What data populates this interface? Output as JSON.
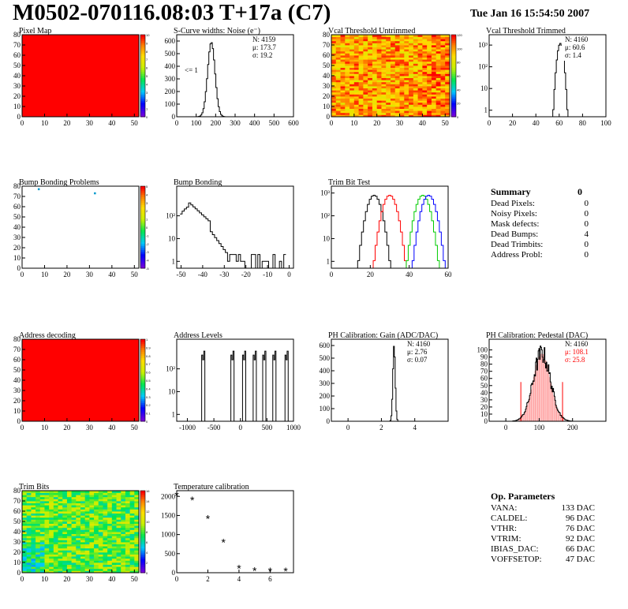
{
  "header": {
    "title": "M0502-070116.08:03 T+17a (C7)",
    "timestamp": "Tue Jan 16 15:54:50 2007"
  },
  "palette": {
    "red": "#ff0000",
    "black": "#000000",
    "green": "#00cc00",
    "blue": "#0000ff",
    "pink": "#ff9999",
    "marker_cyan": "#0099cc"
  },
  "panels": [
    {
      "id": "pixel-map",
      "title": "Pixel Map"
    },
    {
      "id": "scurve",
      "title": "S-Curve widths: Noise (e⁻)"
    },
    {
      "id": "vcal-untrimmed",
      "title": "Vcal Threshold Untrimmed"
    },
    {
      "id": "vcal-trimmed",
      "title": "Vcal Threshold Trimmed"
    },
    {
      "id": "bump-problems",
      "title": "Bump Bonding Problems"
    },
    {
      "id": "bump-bonding",
      "title": "Bump Bonding"
    },
    {
      "id": "trim-bit-test",
      "title": "Trim Bit Test"
    },
    {
      "id": "address-decoding",
      "title": "Address decoding"
    },
    {
      "id": "address-levels",
      "title": "Address Levels"
    },
    {
      "id": "ph-gain",
      "title": "PH Calibration: Gain (ADC/DAC)"
    },
    {
      "id": "ph-pedestal",
      "title": "PH Calibration: Pedestal (DAC)"
    },
    {
      "id": "trim-bits",
      "title": "Trim Bits"
    },
    {
      "id": "temperature",
      "title": "Temperature calibration"
    }
  ],
  "summary": {
    "title": "Summary",
    "total": "0",
    "rows": [
      {
        "label": "Dead Pixels:",
        "value": "0"
      },
      {
        "label": "Noisy Pixels:",
        "value": "0"
      },
      {
        "label": "Mask defects:",
        "value": "0"
      },
      {
        "label": "Dead Bumps:",
        "value": "4"
      },
      {
        "label": "Dead Trimbits:",
        "value": "0"
      },
      {
        "label": "Address Probl:",
        "value": "0"
      }
    ]
  },
  "op_parameters": {
    "title": "Op. Parameters",
    "rows": [
      {
        "label": "VANA:",
        "value": "133 DAC"
      },
      {
        "label": "CALDEL:",
        "value": "96 DAC"
      },
      {
        "label": "VTHR:",
        "value": "76 DAC"
      },
      {
        "label": "VTRIM:",
        "value": "92 DAC"
      },
      {
        "label": "IBIAS_DAC:",
        "value": "66 DAC"
      },
      {
        "label": "VOFFSETOP:",
        "value": "47 DAC"
      }
    ]
  },
  "chart_data": [
    {
      "id": "pixel-map",
      "type": "heatmap",
      "title": "Pixel Map",
      "xlim": [
        0,
        52
      ],
      "ylim": [
        0,
        80
      ],
      "xticks": [
        "0",
        "10",
        "20",
        "30",
        "40",
        "50"
      ],
      "yticks": [
        "0",
        "10",
        "20",
        "30",
        "40",
        "50",
        "60",
        "70",
        "80"
      ],
      "zlim": [
        0,
        10
      ],
      "zticks": [
        "0",
        "1",
        "2",
        "3",
        "4",
        "5",
        "6",
        "7",
        "8",
        "9",
        "10"
      ],
      "fill": "uniform maximum (red)"
    },
    {
      "id": "scurve",
      "type": "line",
      "title": "S-Curve widths: Noise (e⁻)",
      "xlim": [
        0,
        600
      ],
      "ylim": [
        0,
        650
      ],
      "xticks": [
        "0",
        "100",
        "200",
        "300",
        "400",
        "500",
        "600"
      ],
      "yticks": [
        "0",
        "100",
        "200",
        "300",
        "400",
        "500",
        "600"
      ],
      "stats": {
        "N": "N: 4159",
        "mean": "μ: 173.7",
        "sigma": "σ: 19.2"
      },
      "annotation": "<= 1",
      "peak": {
        "x": 178,
        "y": 590
      }
    },
    {
      "id": "vcal-untrimmed",
      "type": "heatmap",
      "title": "Vcal Threshold Untrimmed",
      "xlim": [
        0,
        52
      ],
      "ylim": [
        0,
        80
      ],
      "xticks": [
        "0",
        "10",
        "20",
        "30",
        "40",
        "50"
      ],
      "yticks": [
        "0",
        "10",
        "20",
        "30",
        "40",
        "50",
        "60",
        "70",
        "80"
      ],
      "zticks": [
        "0",
        "20",
        "40",
        "60",
        "80",
        "100",
        "120"
      ],
      "fill": "noisy red/orange, mean around 60"
    },
    {
      "id": "vcal-trimmed",
      "type": "line",
      "title": "Vcal Threshold Trimmed",
      "xlim": [
        0,
        100
      ],
      "log_y": true,
      "ylim": [
        0.5,
        3000
      ],
      "xticks": [
        "0",
        "20",
        "40",
        "60",
        "80",
        "100"
      ],
      "yticks": [
        "1",
        "10",
        "10²",
        "10³"
      ],
      "stats": {
        "N": "N: 4160",
        "mean": "μ: 60.6",
        "sigma": "σ: 1.4"
      },
      "peak": {
        "x": 61,
        "y": 1200
      }
    },
    {
      "id": "bump-problems",
      "type": "heatmap",
      "title": "Bump Bonding Problems",
      "xlim": [
        0,
        52
      ],
      "ylim": [
        0,
        80
      ],
      "xticks": [
        "0",
        "10",
        "20",
        "30",
        "40",
        "50"
      ],
      "yticks": [
        "0",
        "10",
        "20",
        "30",
        "40",
        "50",
        "60",
        "70",
        "80"
      ],
      "zticks": [
        "-5",
        "-4",
        "-3",
        "-2",
        "-1",
        "0",
        "1",
        "2",
        "3",
        "4",
        "5"
      ],
      "points": [
        {
          "x": 7,
          "y": 78
        },
        {
          "x": 32,
          "y": 74
        }
      ]
    },
    {
      "id": "bump-bonding",
      "type": "line",
      "title": "Bump Bonding",
      "xlim": [
        -52,
        2
      ],
      "log_y": true,
      "ylim": [
        0.5,
        2000
      ],
      "xticks": [
        "-50",
        "-40",
        "-30",
        "-20",
        "-10",
        "0"
      ],
      "yticks": [
        "1",
        "10",
        "10²"
      ],
      "peak": {
        "x": -45,
        "y": 300
      }
    },
    {
      "id": "trim-bit-test",
      "type": "line",
      "title": "Trim Bit Test",
      "xlim": [
        0,
        60
      ],
      "log_y": true,
      "ylim": [
        0.5,
        2000
      ],
      "xticks": [
        "0",
        "20",
        "40",
        "60"
      ],
      "yticks": [
        "1",
        "10",
        "10²",
        "10³"
      ],
      "series": [
        {
          "color": "#000000",
          "center": 22
        },
        {
          "color": "#ff0000",
          "center": 30
        },
        {
          "color": "#00cc00",
          "center": 47
        },
        {
          "color": "#0000ff",
          "center": 50
        }
      ]
    },
    {
      "id": "address-decoding",
      "type": "heatmap",
      "title": "Address decoding",
      "xlim": [
        0,
        52
      ],
      "ylim": [
        0,
        80
      ],
      "xticks": [
        "0",
        "10",
        "20",
        "30",
        "40",
        "50"
      ],
      "yticks": [
        "0",
        "10",
        "20",
        "30",
        "40",
        "50",
        "60",
        "70",
        "80"
      ],
      "zticks": [
        "0",
        "0.1",
        "0.2",
        "0.3",
        "0.4",
        "0.5",
        "0.6",
        "0.7",
        "0.8",
        "0.9",
        "1"
      ],
      "fill": "uniform maximum (red)"
    },
    {
      "id": "address-levels",
      "type": "line",
      "title": "Address Levels",
      "xlim": [
        -1200,
        1000
      ],
      "log_y": true,
      "ylim": [
        0.5,
        2000
      ],
      "xticks": [
        "-1000",
        "-500",
        "0",
        "500",
        "1000"
      ],
      "yticks": [
        "1",
        "10",
        "10²"
      ],
      "peaks": [
        -700,
        -150,
        70,
        270,
        450,
        640,
        870
      ]
    },
    {
      "id": "ph-gain",
      "type": "line",
      "title": "PH Calibration: Gain (ADC/DAC)",
      "xlim": [
        -1,
        6
      ],
      "ylim": [
        0,
        650
      ],
      "xticks": [
        "0",
        "2",
        "4"
      ],
      "yticks": [
        "0",
        "100",
        "200",
        "300",
        "400",
        "500",
        "600"
      ],
      "stats": {
        "N": "N: 4160",
        "mean": "μ: 2.76",
        "sigma": "σ: 0.07"
      },
      "peak": {
        "x": 2.76,
        "y": 600
      }
    },
    {
      "id": "ph-pedestal",
      "type": "line",
      "title": "PH Calibration: Pedestal (DAC)",
      "xlim": [
        -50,
        300
      ],
      "ylim": [
        0,
        115
      ],
      "xticks": [
        "0",
        "100",
        "200"
      ],
      "yticks": [
        "0",
        "10",
        "20",
        "30",
        "40",
        "50",
        "60",
        "70",
        "80",
        "90",
        "100"
      ],
      "stats": {
        "N": "N: 4160",
        "mean": "μ: 108.1",
        "sigma": "σ: 25.8"
      },
      "peak": {
        "x": 108,
        "y": 95
      }
    },
    {
      "id": "trim-bits",
      "type": "heatmap",
      "title": "Trim Bits",
      "xlim": [
        0,
        52
      ],
      "ylim": [
        0,
        80
      ],
      "xticks": [
        "0",
        "10",
        "20",
        "30",
        "40",
        "50"
      ],
      "yticks": [
        "0",
        "10",
        "20",
        "30",
        "40",
        "50",
        "60",
        "70",
        "80"
      ],
      "zticks": [
        "0",
        "2",
        "4",
        "6",
        "8",
        "10",
        "12",
        "14",
        "16"
      ],
      "fill": "mostly green with yellow and cyan"
    },
    {
      "id": "temperature",
      "type": "scatter",
      "title": "Temperature calibration",
      "xlim": [
        0,
        7.5
      ],
      "ylim": [
        0,
        2150
      ],
      "xticks": [
        "0",
        "2",
        "4",
        "6"
      ],
      "yticks": [
        "0",
        "500",
        "1000",
        "1500",
        "2000"
      ],
      "x": [
        0,
        1,
        2,
        3,
        4,
        5,
        6,
        7
      ],
      "y": [
        2030,
        1900,
        1420,
        800,
        110,
        50,
        40,
        40
      ]
    }
  ]
}
